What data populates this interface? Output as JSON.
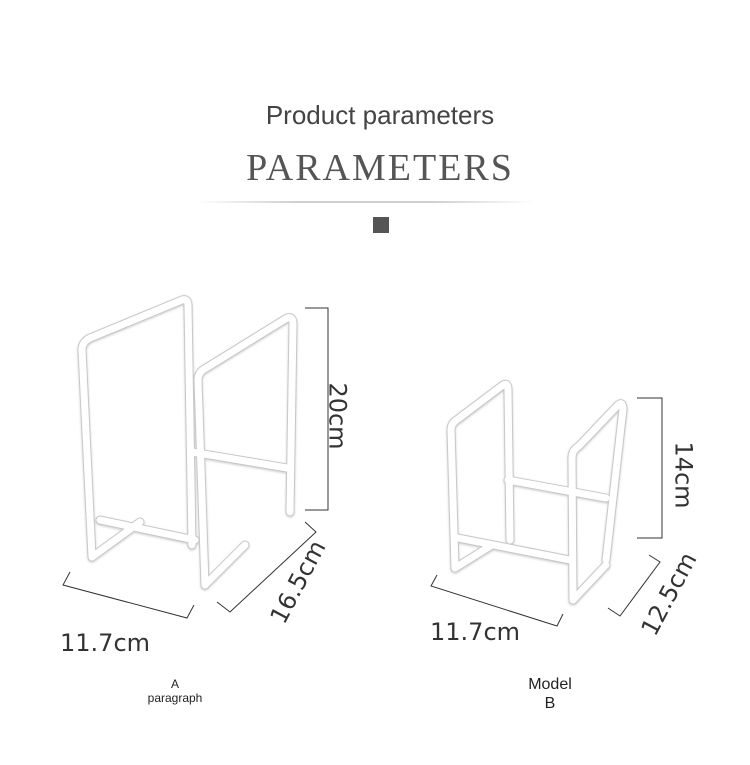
{
  "header": {
    "title": "Product parameters",
    "subtitle": "PARAMETERS"
  },
  "model_a": {
    "height": "20cm",
    "depth": "16.5cm",
    "width": "11.7cm",
    "caption_line1": "A",
    "caption_line2": "paragraph"
  },
  "model_b": {
    "height": "14cm",
    "depth": "12.5cm",
    "width": "11.7cm",
    "caption_line1": "Model",
    "caption_line2": "B"
  }
}
